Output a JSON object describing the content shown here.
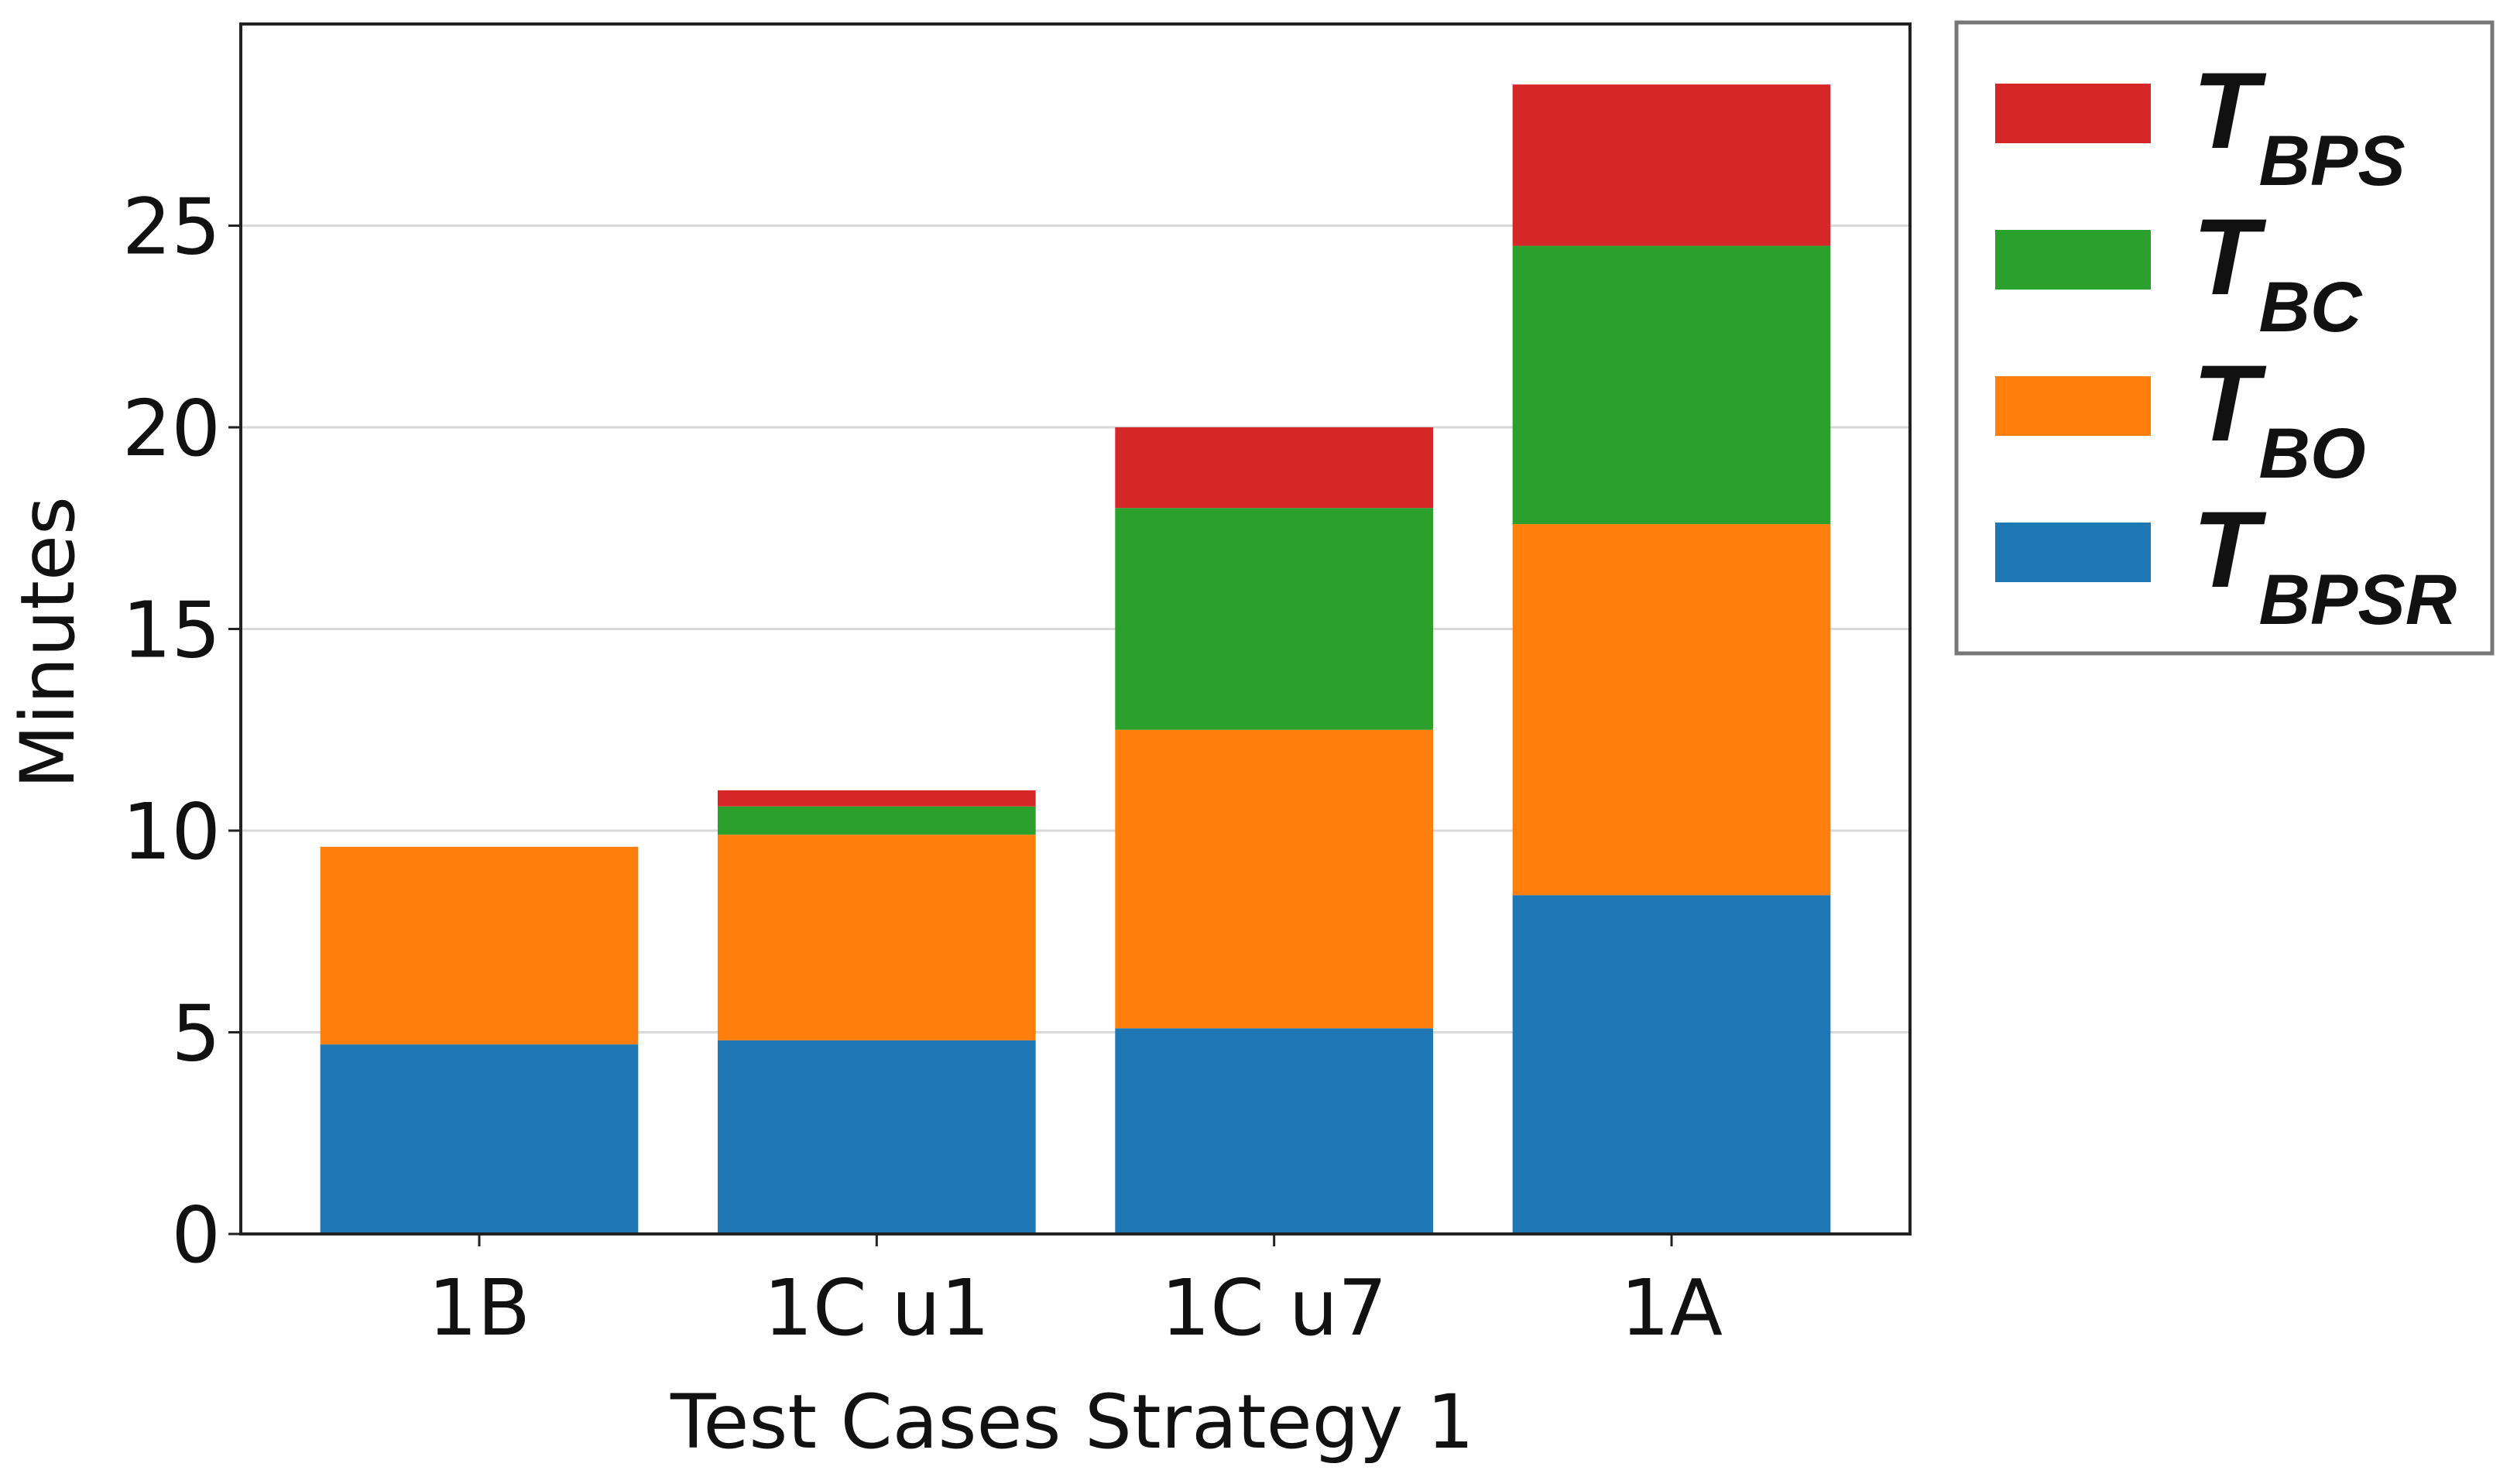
{
  "chart_data": {
    "type": "bar",
    "stacked": true,
    "xlabel": "Test Cases Strategy 1",
    "ylabel": "Minutes",
    "categories": [
      "1B",
      "1C u1",
      "1C u7",
      "1A"
    ],
    "series": [
      {
        "name": "TBPSR",
        "color": "#1f77b4",
        "values": [
          4.7,
          4.8,
          5.1,
          8.4
        ]
      },
      {
        "name": "TBO",
        "color": "#ff7f0e",
        "values": [
          4.9,
          5.1,
          7.4,
          9.2
        ]
      },
      {
        "name": "TBC",
        "color": "#2ca02c",
        "values": [
          0,
          0.7,
          5.5,
          6.9
        ]
      },
      {
        "name": "TBPS",
        "color": "#d62728",
        "values": [
          0,
          0.4,
          2.0,
          4.0
        ]
      }
    ],
    "ylim": [
      0,
      30
    ],
    "yticks": [
      0,
      5,
      10,
      15,
      20,
      25
    ],
    "grid": true,
    "legend": "outside-right"
  }
}
